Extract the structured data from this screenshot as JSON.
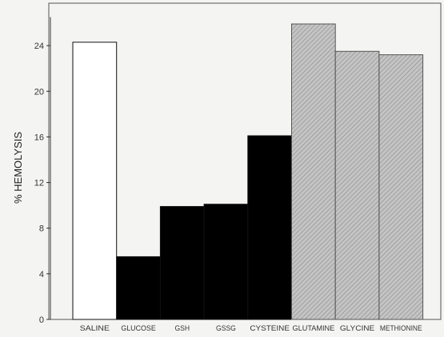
{
  "chart_data": {
    "type": "bar",
    "title": "",
    "xlabel": "",
    "ylabel": "% HEMOLYSIS",
    "ylim": [
      0,
      28
    ],
    "yticks": [
      0,
      4,
      8,
      12,
      16,
      20,
      24
    ],
    "grid": false,
    "categories": [
      "SALINE",
      "GLUCOSE",
      "GSH",
      "GSSG",
      "CYSTEINE",
      "GLUTAMINE",
      "GLYCINE",
      "METHIONINE"
    ],
    "values": [
      24.3,
      5.5,
      9.9,
      10.1,
      16.1,
      25.9,
      23.5,
      23.2
    ],
    "fills": [
      "white",
      "black",
      "black",
      "black",
      "black",
      "hatched",
      "hatched",
      "hatched"
    ],
    "colors": {
      "white": "#ffffff",
      "black": "#000000",
      "hatched": "#bdbdbd",
      "axis": "#333333"
    }
  }
}
